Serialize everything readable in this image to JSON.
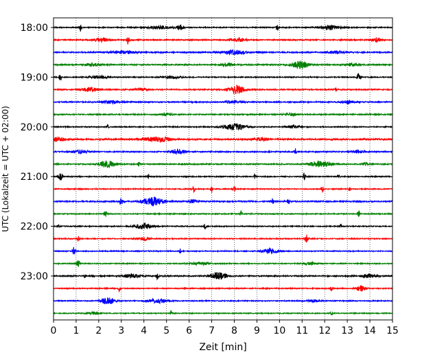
{
  "chart_data": {
    "type": "line",
    "title": "",
    "xlabel": "Zeit  [min]",
    "ylabel": "UTC (Lokalzeit = UTC + 02:00)",
    "xlim": [
      0,
      15
    ],
    "x_ticks": [
      0,
      1,
      2,
      3,
      4,
      5,
      6,
      7,
      8,
      9,
      10,
      11,
      12,
      13,
      14,
      15
    ],
    "grid": "vertical dotted lines at each minute",
    "trace_interval_minutes": 15,
    "hour_labels": [
      {
        "label": "18:00",
        "trace_index": 0
      },
      {
        "label": "19:00",
        "trace_index": 4
      },
      {
        "label": "20:00",
        "trace_index": 8
      },
      {
        "label": "21:00",
        "trace_index": 12
      },
      {
        "label": "22:00",
        "trace_index": 16
      },
      {
        "label": "23:00",
        "trace_index": 20
      }
    ],
    "color_cycle": [
      "#000000",
      "#ff0000",
      "#0000ff",
      "#008000"
    ],
    "series": [
      {
        "start": "18:00",
        "color": "#000000",
        "noise": 0.1,
        "events": [
          {
            "t": 1.2,
            "a": 0.9,
            "w": 0.04
          },
          {
            "t": 4.7,
            "a": 0.35,
            "w": 0.5
          },
          {
            "t": 5.6,
            "a": 0.6,
            "w": 0.15
          },
          {
            "t": 9.9,
            "a": 0.8,
            "w": 0.05
          },
          {
            "t": 12.2,
            "a": 0.5,
            "w": 0.5
          }
        ]
      },
      {
        "start": "18:15",
        "color": "#ff0000",
        "noise": 0.12,
        "events": [
          {
            "t": 2.1,
            "a": 0.45,
            "w": 0.3
          },
          {
            "t": 3.3,
            "a": 1.0,
            "w": 0.05
          },
          {
            "t": 8.2,
            "a": 0.35,
            "w": 0.4
          },
          {
            "t": 14.3,
            "a": 0.45,
            "w": 0.2
          }
        ]
      },
      {
        "start": "18:30",
        "color": "#0000ff",
        "noise": 0.13,
        "events": [
          {
            "t": 3.1,
            "a": 0.3,
            "w": 0.5
          },
          {
            "t": 8.0,
            "a": 0.45,
            "w": 0.5
          },
          {
            "t": 12.5,
            "a": 0.3,
            "w": 0.4
          }
        ]
      },
      {
        "start": "18:45",
        "color": "#008000",
        "noise": 0.12,
        "events": [
          {
            "t": 1.7,
            "a": 0.35,
            "w": 0.3
          },
          {
            "t": 7.7,
            "a": 0.3,
            "w": 0.3
          },
          {
            "t": 10.9,
            "a": 0.9,
            "w": 0.35
          },
          {
            "t": 13.2,
            "a": 0.3,
            "w": 0.3
          }
        ]
      },
      {
        "start": "19:00",
        "color": "#000000",
        "noise": 0.1,
        "events": [
          {
            "t": 0.3,
            "a": 0.9,
            "w": 0.05
          },
          {
            "t": 2.0,
            "a": 0.35,
            "w": 0.4
          },
          {
            "t": 5.2,
            "a": 0.3,
            "w": 0.4
          },
          {
            "t": 13.5,
            "a": 0.9,
            "w": 0.08
          }
        ]
      },
      {
        "start": "19:15",
        "color": "#ff0000",
        "noise": 0.12,
        "events": [
          {
            "t": 1.6,
            "a": 0.5,
            "w": 0.3
          },
          {
            "t": 3.9,
            "a": 0.3,
            "w": 0.3
          },
          {
            "t": 8.1,
            "a": 0.9,
            "w": 0.35
          },
          {
            "t": 12.5,
            "a": 0.45,
            "w": 0.05
          }
        ]
      },
      {
        "start": "19:30",
        "color": "#0000ff",
        "noise": 0.12,
        "events": [
          {
            "t": 2.5,
            "a": 0.3,
            "w": 0.4
          },
          {
            "t": 8.0,
            "a": 0.3,
            "w": 0.4
          },
          {
            "t": 13.0,
            "a": 0.4,
            "w": 0.3
          }
        ]
      },
      {
        "start": "19:45",
        "color": "#008000",
        "noise": 0.11,
        "events": [
          {
            "t": 5.0,
            "a": 0.3,
            "w": 0.3
          },
          {
            "t": 10.5,
            "a": 0.3,
            "w": 0.3
          }
        ]
      },
      {
        "start": "20:00",
        "color": "#000000",
        "noise": 0.1,
        "events": [
          {
            "t": 2.4,
            "a": 0.5,
            "w": 0.05
          },
          {
            "t": 8.0,
            "a": 0.7,
            "w": 0.5
          },
          {
            "t": 10.6,
            "a": 0.3,
            "w": 0.3
          }
        ]
      },
      {
        "start": "20:15",
        "color": "#ff0000",
        "noise": 0.15,
        "events": [
          {
            "t": 0.2,
            "a": 0.5,
            "w": 0.3
          },
          {
            "t": 4.6,
            "a": 0.5,
            "w": 0.6
          },
          {
            "t": 9.2,
            "a": 0.3,
            "w": 0.4
          }
        ]
      },
      {
        "start": "20:30",
        "color": "#0000ff",
        "noise": 0.12,
        "events": [
          {
            "t": 1.2,
            "a": 0.4,
            "w": 0.3
          },
          {
            "t": 5.5,
            "a": 0.6,
            "w": 0.3
          },
          {
            "t": 10.7,
            "a": 0.8,
            "w": 0.05
          },
          {
            "t": 13.5,
            "a": 0.3,
            "w": 0.3
          }
        ]
      },
      {
        "start": "20:45",
        "color": "#008000",
        "noise": 0.12,
        "events": [
          {
            "t": 2.4,
            "a": 0.8,
            "w": 0.35
          },
          {
            "t": 3.8,
            "a": 0.5,
            "w": 0.05
          },
          {
            "t": 11.8,
            "a": 0.6,
            "w": 0.5
          },
          {
            "t": 13.8,
            "a": 0.4,
            "w": 0.1
          }
        ]
      },
      {
        "start": "21:00",
        "color": "#000000",
        "noise": 0.1,
        "events": [
          {
            "t": 0.3,
            "a": 0.8,
            "w": 0.1
          },
          {
            "t": 4.2,
            "a": 0.5,
            "w": 0.05
          },
          {
            "t": 8.9,
            "a": 0.6,
            "w": 0.05
          },
          {
            "t": 11.1,
            "a": 1.0,
            "w": 0.05
          },
          {
            "t": 12.6,
            "a": 0.6,
            "w": 0.05
          }
        ]
      },
      {
        "start": "21:15",
        "color": "#ff0000",
        "noise": 0.1,
        "events": [
          {
            "t": 6.2,
            "a": 0.8,
            "w": 0.05
          },
          {
            "t": 7.0,
            "a": 0.8,
            "w": 0.05
          },
          {
            "t": 8.0,
            "a": 0.6,
            "w": 0.05
          },
          {
            "t": 11.9,
            "a": 0.8,
            "w": 0.05
          },
          {
            "t": 13.1,
            "a": 0.5,
            "w": 0.05
          }
        ]
      },
      {
        "start": "21:30",
        "color": "#0000ff",
        "noise": 0.13,
        "events": [
          {
            "t": 3.0,
            "a": 0.8,
            "w": 0.08
          },
          {
            "t": 4.4,
            "a": 1.0,
            "w": 0.45
          },
          {
            "t": 6.2,
            "a": 0.4,
            "w": 0.2
          },
          {
            "t": 9.7,
            "a": 0.7,
            "w": 0.05
          },
          {
            "t": 10.4,
            "a": 0.6,
            "w": 0.05
          }
        ]
      },
      {
        "start": "21:45",
        "color": "#008000",
        "noise": 0.1,
        "events": [
          {
            "t": 2.3,
            "a": 0.8,
            "w": 0.06
          },
          {
            "t": 8.3,
            "a": 0.6,
            "w": 0.05
          },
          {
            "t": 13.5,
            "a": 0.8,
            "w": 0.05
          }
        ]
      },
      {
        "start": "22:00",
        "color": "#000000",
        "noise": 0.1,
        "events": [
          {
            "t": 0.2,
            "a": 0.5,
            "w": 0.05
          },
          {
            "t": 4.0,
            "a": 0.6,
            "w": 0.4
          },
          {
            "t": 6.7,
            "a": 0.6,
            "w": 0.05
          },
          {
            "t": 12.7,
            "a": 0.6,
            "w": 0.05
          }
        ]
      },
      {
        "start": "22:15",
        "color": "#ff0000",
        "noise": 0.1,
        "events": [
          {
            "t": 1.1,
            "a": 0.7,
            "w": 0.05
          },
          {
            "t": 4.0,
            "a": 0.3,
            "w": 0.3
          },
          {
            "t": 11.2,
            "a": 0.9,
            "w": 0.08
          }
        ]
      },
      {
        "start": "22:30",
        "color": "#0000ff",
        "noise": 0.1,
        "events": [
          {
            "t": 0.9,
            "a": 0.9,
            "w": 0.06
          },
          {
            "t": 5.6,
            "a": 0.5,
            "w": 0.05
          },
          {
            "t": 9.6,
            "a": 0.6,
            "w": 0.35
          }
        ]
      },
      {
        "start": "22:45",
        "color": "#008000",
        "noise": 0.1,
        "events": [
          {
            "t": 1.1,
            "a": 0.7,
            "w": 0.08
          },
          {
            "t": 6.5,
            "a": 0.3,
            "w": 0.4
          },
          {
            "t": 11.4,
            "a": 0.3,
            "w": 0.3
          }
        ]
      },
      {
        "start": "23:00",
        "color": "#000000",
        "noise": 0.12,
        "events": [
          {
            "t": 1.4,
            "a": 0.4,
            "w": 0.05
          },
          {
            "t": 3.5,
            "a": 0.45,
            "w": 0.4
          },
          {
            "t": 4.6,
            "a": 0.7,
            "w": 0.05
          },
          {
            "t": 7.3,
            "a": 0.8,
            "w": 0.35
          },
          {
            "t": 14.0,
            "a": 0.4,
            "w": 0.4
          }
        ]
      },
      {
        "start": "23:15",
        "color": "#ff0000",
        "noise": 0.1,
        "events": [
          {
            "t": 2.9,
            "a": 0.8,
            "w": 0.05
          },
          {
            "t": 12.3,
            "a": 0.6,
            "w": 0.05
          },
          {
            "t": 13.6,
            "a": 0.7,
            "w": 0.2
          }
        ]
      },
      {
        "start": "23:30",
        "color": "#0000ff",
        "noise": 0.1,
        "events": [
          {
            "t": 2.4,
            "a": 0.8,
            "w": 0.3
          },
          {
            "t": 4.6,
            "a": 0.5,
            "w": 0.4
          },
          {
            "t": 11.5,
            "a": 0.3,
            "w": 0.3
          }
        ]
      },
      {
        "start": "23:45",
        "color": "#008000",
        "noise": 0.09,
        "events": [
          {
            "t": 1.8,
            "a": 0.3,
            "w": 0.3
          },
          {
            "t": 5.2,
            "a": 0.6,
            "w": 0.05
          },
          {
            "t": 12.3,
            "a": 0.4,
            "w": 0.05
          }
        ]
      }
    ]
  }
}
